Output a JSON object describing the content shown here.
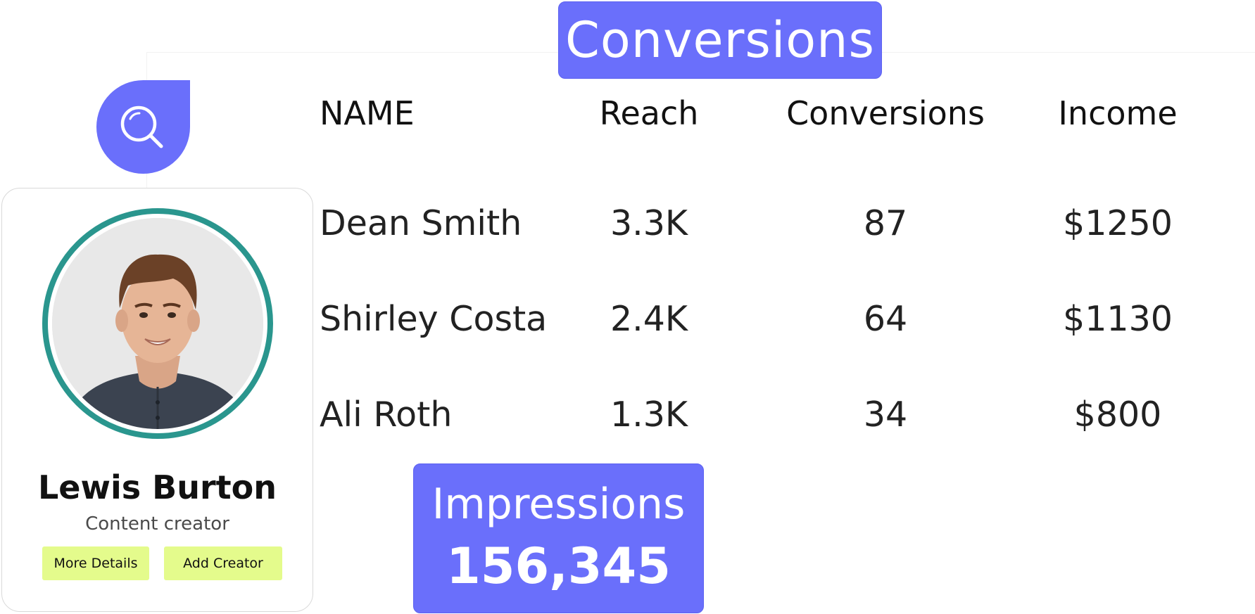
{
  "header_badge": {
    "label": "Conversions"
  },
  "search_icon": {
    "icon": "search-icon"
  },
  "table": {
    "columns": [
      "NAME",
      "Reach",
      "Conversions",
      "Income"
    ],
    "rows": [
      {
        "name": "Dean Smith",
        "reach": "3.3K",
        "conversions": "87",
        "income": "$1250"
      },
      {
        "name": "Shirley Costa",
        "reach": "2.4K",
        "conversions": "64",
        "income": "$1130"
      },
      {
        "name": "Ali Roth",
        "reach": "1.3K",
        "conversions": "34",
        "income": "$800"
      }
    ]
  },
  "profile": {
    "name": "Lewis Burton",
    "role": "Content creator",
    "more_label": "More Details",
    "add_label": "Add Creator"
  },
  "impressions": {
    "label": "Impressions",
    "value": "156,345"
  },
  "colors": {
    "accent": "#6a6ffb",
    "ring": "#2a968e",
    "button": "#e4fb8c"
  }
}
